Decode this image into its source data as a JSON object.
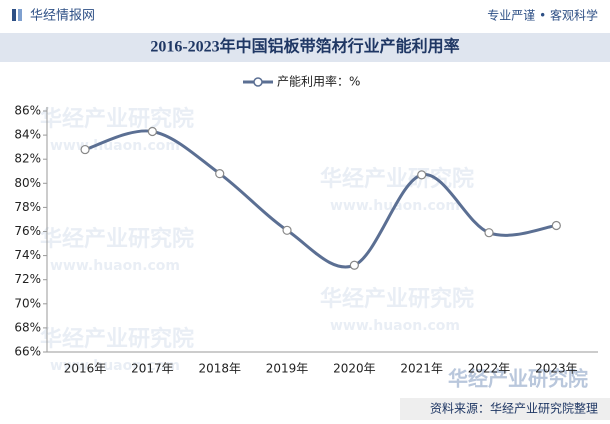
{
  "header": {
    "brand": "华经情报网",
    "slogan": "专业严谨 • 客观科学"
  },
  "chart_data": {
    "type": "line",
    "title": "2016-2023年中国铝板带箔材行业产能利用率",
    "categories": [
      "2016年",
      "2017年",
      "2018年",
      "2019年",
      "2020年",
      "2021年",
      "2022年",
      "2023年"
    ],
    "series": [
      {
        "name": "产能利用率：%",
        "color": "#5b6f93",
        "values": [
          82.8,
          84.3,
          80.8,
          76.1,
          73.2,
          80.7,
          75.9,
          76.5
        ]
      }
    ],
    "ylim": [
      66,
      86
    ],
    "yticks": [
      {
        "value": 66,
        "label": "66%"
      },
      {
        "value": 68,
        "label": "68%"
      },
      {
        "value": 70,
        "label": "70%"
      },
      {
        "value": 72,
        "label": "72%"
      },
      {
        "value": 74,
        "label": "74%"
      },
      {
        "value": 76,
        "label": "76%"
      },
      {
        "value": 78,
        "label": "78%"
      },
      {
        "value": 80,
        "label": "80%"
      },
      {
        "value": 82,
        "label": "82%"
      },
      {
        "value": 84,
        "label": "84%"
      },
      {
        "value": 86,
        "label": "86%"
      }
    ],
    "smooth": true,
    "legend": "top"
  },
  "watermark": {
    "name": "华经产业研究院",
    "url": "www.huaon.com"
  },
  "source": "资料来源：华经产业研究院整理"
}
